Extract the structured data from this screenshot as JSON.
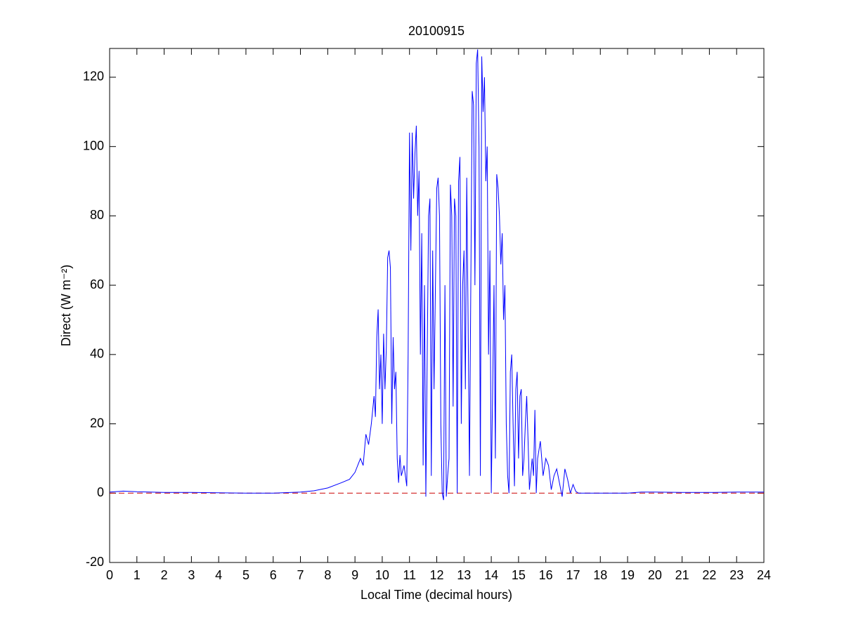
{
  "chart_data": {
    "type": "line",
    "title": "20100915",
    "xlabel": "Local Time (decimal hours)",
    "ylabel": "Direct (W m⁻²)",
    "x": [
      0,
      0.5,
      1,
      2,
      3,
      4,
      5,
      6,
      7,
      7.5,
      8,
      8.5,
      8.8,
      9,
      9.2,
      9.3,
      9.4,
      9.5,
      9.6,
      9.7,
      9.75,
      9.8,
      9.85,
      9.9,
      9.95,
      10,
      10.05,
      10.1,
      10.15,
      10.2,
      10.25,
      10.3,
      10.35,
      10.4,
      10.45,
      10.5,
      10.55,
      10.6,
      10.65,
      10.7,
      10.8,
      10.9,
      10.95,
      11,
      11.05,
      11.1,
      11.15,
      11.2,
      11.25,
      11.3,
      11.35,
      11.4,
      11.45,
      11.5,
      11.55,
      11.6,
      11.7,
      11.75,
      11.8,
      11.85,
      11.9,
      12,
      12.05,
      12.1,
      12.15,
      12.2,
      12.25,
      12.3,
      12.35,
      12.4,
      12.45,
      12.5,
      12.55,
      12.6,
      12.65,
      12.7,
      12.75,
      12.8,
      12.85,
      12.9,
      12.95,
      13,
      13.05,
      13.1,
      13.15,
      13.2,
      13.3,
      13.35,
      13.4,
      13.45,
      13.5,
      13.55,
      13.6,
      13.65,
      13.7,
      13.75,
      13.8,
      13.85,
      13.9,
      13.95,
      14,
      14.05,
      14.1,
      14.15,
      14.2,
      14.25,
      14.3,
      14.35,
      14.4,
      14.45,
      14.5,
      14.55,
      14.6,
      14.65,
      14.7,
      14.75,
      14.8,
      14.85,
      14.9,
      14.95,
      15,
      15.05,
      15.1,
      15.15,
      15.2,
      15.25,
      15.3,
      15.35,
      15.4,
      15.5,
      15.55,
      15.6,
      15.65,
      15.7,
      15.8,
      15.9,
      16,
      16.1,
      16.2,
      16.3,
      16.4,
      16.5,
      16.6,
      16.7,
      16.8,
      16.9,
      17,
      17.1,
      17.2,
      18,
      19,
      19.5,
      20,
      21,
      22,
      23,
      24
    ],
    "values": [
      0.3,
      0.6,
      0.4,
      0.2,
      0.2,
      0.1,
      0,
      0,
      0.3,
      0.7,
      1.5,
      3,
      4,
      6,
      10,
      8,
      17,
      14,
      20,
      28,
      22,
      45,
      53,
      30,
      40,
      20,
      46,
      30,
      42,
      68,
      70,
      65,
      20,
      45,
      30,
      35,
      10,
      3,
      11,
      5,
      8,
      2,
      40,
      104,
      70,
      104,
      85,
      98,
      106,
      80,
      93,
      40,
      75,
      8,
      60,
      -1,
      80,
      85,
      5,
      70,
      30,
      88,
      91,
      80,
      20,
      0,
      -2,
      60,
      -1,
      5,
      10,
      89,
      80,
      25,
      85,
      80,
      0,
      90,
      97,
      20,
      60,
      70,
      30,
      91,
      50,
      5,
      116,
      112,
      60,
      124,
      128,
      100,
      5,
      126,
      110,
      120,
      90,
      100,
      40,
      70,
      0,
      30,
      60,
      10,
      92,
      88,
      80,
      66,
      75,
      50,
      60,
      20,
      5,
      0,
      35,
      40,
      20,
      2,
      30,
      35,
      10,
      28,
      30,
      5,
      10,
      20,
      28,
      15,
      1,
      10,
      5,
      24,
      0,
      10,
      15,
      5,
      10,
      8,
      1,
      5,
      7,
      3,
      -1,
      7,
      4,
      0,
      2.5,
      0.5,
      0,
      0,
      0,
      0.3,
      0.3,
      0.2,
      0.2,
      0.3,
      0.3
    ],
    "color": "#0000ff",
    "reference_line": {
      "value": 0,
      "color": "#cc0000",
      "dashed": true
    },
    "xlim": [
      0,
      24
    ],
    "xticks": [
      0,
      1,
      2,
      3,
      4,
      5,
      6,
      7,
      8,
      9,
      10,
      11,
      12,
      13,
      14,
      15,
      16,
      17,
      18,
      19,
      20,
      21,
      22,
      23,
      24
    ],
    "ylim": [
      -20,
      128.3
    ],
    "yticks": [
      -20,
      0,
      20,
      40,
      60,
      80,
      100,
      120
    ]
  }
}
